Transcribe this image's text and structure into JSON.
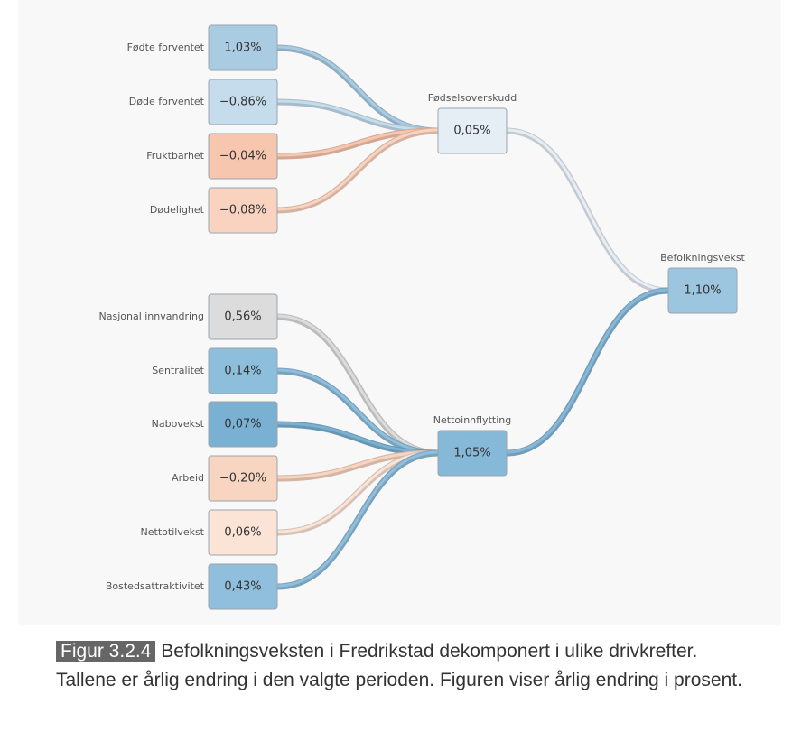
{
  "nodes": [
    {
      "label": "Fødte forventet",
      "value": "1,03%",
      "color": "#a9cce3"
    },
    {
      "label": "Døde forventet",
      "value": "−0,86%",
      "color": "#c5dcec"
    },
    {
      "label": "Fruktbarhet",
      "value": "−0,04%",
      "color": "#f7c6ae"
    },
    {
      "label": "Dødelighet",
      "value": "−0,08%",
      "color": "#f9d3bf"
    },
    {
      "label": "Fødselsoverskudd",
      "value": "0,05%",
      "color": "#e6eef5"
    },
    {
      "label": "Nasjonal innvandring",
      "value": "0,56%",
      "color": "#dcdcdc"
    },
    {
      "label": "Sentralitet",
      "value": "0,14%",
      "color": "#8dbedc"
    },
    {
      "label": "Nabovekst",
      "value": "0,07%",
      "color": "#7ab1d3"
    },
    {
      "label": "Arbeid",
      "value": "−0,20%",
      "color": "#f8d5c1"
    },
    {
      "label": "Nettotilvekst",
      "value": "0,06%",
      "color": "#fbe3d6"
    },
    {
      "label": "Bostedsattraktivitet",
      "value": "0,43%",
      "color": "#8fbfdc"
    },
    {
      "label": "Nettoinnflytting",
      "value": "1,05%",
      "color": "#86b8d8"
    },
    {
      "label": "Befolkningsvekst",
      "value": "1,10%",
      "color": "#9cc6e0"
    }
  ],
  "caption": {
    "figure": "Figur 3.2.4",
    "text": "Befolkningsveksten i Fredrikstad dekomponert i ulike drivkrefter. Tallene er årlig endring i den valgte perioden. Figuren viser årlig endring i prosent."
  }
}
